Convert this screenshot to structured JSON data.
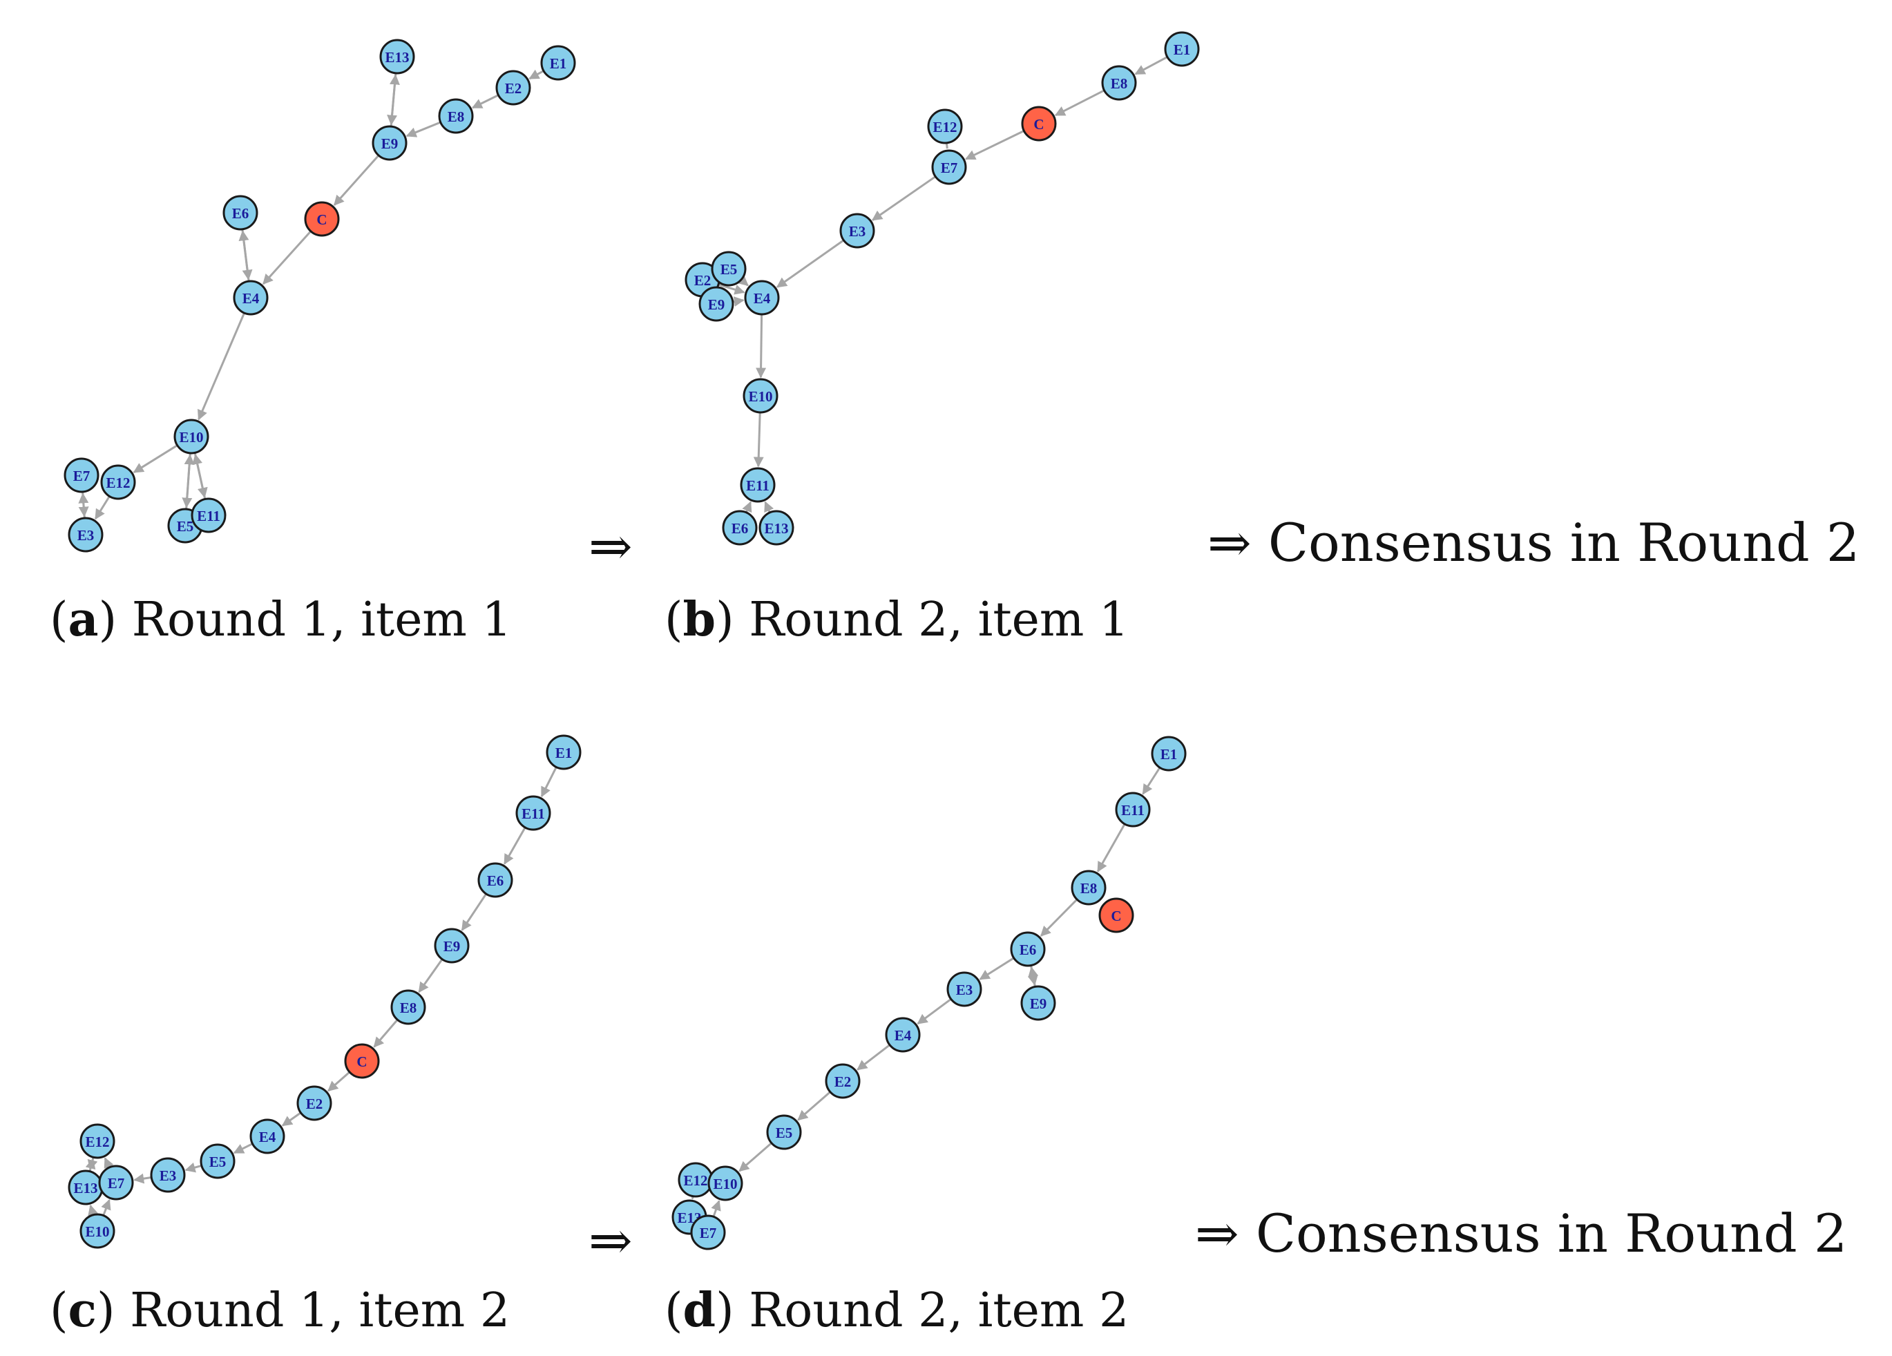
{
  "colors": {
    "expert": "#87ceeb",
    "central": "#ff6347",
    "edge": "#a6a6a6",
    "label": "#1b1b9a"
  },
  "arrow_symbol": "⇒",
  "consensus_text": "⇒ Consensus in Round 2",
  "panels": [
    {
      "id": "a",
      "caption": {
        "letter": "a",
        "text": "Round 1, item 1"
      },
      "nodes": [
        {
          "id": "E13"
        },
        {
          "id": "E1"
        },
        {
          "id": "E2"
        },
        {
          "id": "E8"
        },
        {
          "id": "E9"
        },
        {
          "id": "E6"
        },
        {
          "id": "C"
        },
        {
          "id": "E4"
        },
        {
          "id": "E10"
        },
        {
          "id": "E7"
        },
        {
          "id": "E12"
        },
        {
          "id": "E3"
        },
        {
          "id": "E5"
        },
        {
          "id": "E11"
        }
      ],
      "edges": [
        [
          "E1",
          "E2",
          1
        ],
        [
          "E2",
          "E8",
          1
        ],
        [
          "E8",
          "E9",
          1
        ],
        [
          "E13",
          "E9",
          1
        ],
        [
          "E9",
          "E13",
          1
        ],
        [
          "E9",
          "C",
          1
        ],
        [
          "C",
          "E4",
          1
        ],
        [
          "E6",
          "E4",
          1
        ],
        [
          "E4",
          "E6",
          1
        ],
        [
          "E4",
          "E10",
          1
        ],
        [
          "E10",
          "E12",
          1
        ],
        [
          "E12",
          "E3",
          1
        ],
        [
          "E3",
          "E7",
          1
        ],
        [
          "E7",
          "E3",
          1
        ],
        [
          "E10",
          "E5",
          1
        ],
        [
          "E5",
          "E10",
          1
        ],
        [
          "E10",
          "E11",
          1
        ],
        [
          "E11",
          "E10",
          1
        ]
      ]
    },
    {
      "id": "b",
      "caption": {
        "letter": "b",
        "text": "Round 2, item 1"
      },
      "nodes": [
        {
          "id": "E1"
        },
        {
          "id": "E8"
        },
        {
          "id": "C"
        },
        {
          "id": "E12"
        },
        {
          "id": "E7"
        },
        {
          "id": "E3"
        },
        {
          "id": "E2"
        },
        {
          "id": "E5"
        },
        {
          "id": "E9"
        },
        {
          "id": "E4"
        },
        {
          "id": "E10"
        },
        {
          "id": "E11"
        },
        {
          "id": "E6"
        },
        {
          "id": "E13"
        }
      ],
      "edges": [
        [
          "E1",
          "E8",
          1
        ],
        [
          "E8",
          "C",
          1
        ],
        [
          "C",
          "E7",
          1
        ],
        [
          "E12",
          "E7",
          0
        ],
        [
          "E7",
          "E3",
          1
        ],
        [
          "E3",
          "E4",
          1
        ],
        [
          "E2",
          "E4",
          1
        ],
        [
          "E5",
          "E4",
          1
        ],
        [
          "E9",
          "E4",
          1
        ],
        [
          "E4",
          "E10",
          1
        ],
        [
          "E10",
          "E11",
          1
        ],
        [
          "E6",
          "E11",
          1
        ],
        [
          "E13",
          "E11",
          1
        ]
      ]
    },
    {
      "id": "c",
      "caption": {
        "letter": "c",
        "text": "Round 1, item 2"
      },
      "nodes": [
        {
          "id": "E1"
        },
        {
          "id": "E11"
        },
        {
          "id": "E6"
        },
        {
          "id": "E9"
        },
        {
          "id": "E8"
        },
        {
          "id": "C"
        },
        {
          "id": "E2"
        },
        {
          "id": "E4"
        },
        {
          "id": "E5"
        },
        {
          "id": "E3"
        },
        {
          "id": "E12"
        },
        {
          "id": "E13"
        },
        {
          "id": "E7"
        },
        {
          "id": "E10"
        }
      ],
      "edges": [
        [
          "E1",
          "E11",
          1
        ],
        [
          "E11",
          "E6",
          1
        ],
        [
          "E6",
          "E9",
          1
        ],
        [
          "E9",
          "E8",
          1
        ],
        [
          "E8",
          "C",
          1
        ],
        [
          "C",
          "E2",
          1
        ],
        [
          "E2",
          "E4",
          1
        ],
        [
          "E4",
          "E5",
          1
        ],
        [
          "E5",
          "E3",
          1
        ],
        [
          "E3",
          "E7",
          1
        ],
        [
          "E7",
          "E12",
          1
        ],
        [
          "E12",
          "E13",
          1
        ],
        [
          "E13",
          "E12",
          1
        ],
        [
          "E10",
          "E13",
          1
        ],
        [
          "E10",
          "E7",
          1
        ]
      ]
    },
    {
      "id": "d",
      "caption": {
        "letter": "d",
        "text": "Round 2, item 2"
      },
      "nodes": [
        {
          "id": "E1"
        },
        {
          "id": "E11"
        },
        {
          "id": "E8"
        },
        {
          "id": "C"
        },
        {
          "id": "E6"
        },
        {
          "id": "E3"
        },
        {
          "id": "E9"
        },
        {
          "id": "E4"
        },
        {
          "id": "E2"
        },
        {
          "id": "E5"
        },
        {
          "id": "E12"
        },
        {
          "id": "E10"
        },
        {
          "id": "E13"
        },
        {
          "id": "E7"
        }
      ],
      "edges": [
        [
          "E1",
          "E11",
          1
        ],
        [
          "E11",
          "E8",
          1
        ],
        [
          "E8",
          "E6",
          1
        ],
        [
          "E9",
          "E6",
          1
        ],
        [
          "E6",
          "E9",
          1
        ],
        [
          "E6",
          "E3",
          1
        ],
        [
          "E3",
          "E4",
          1
        ],
        [
          "E4",
          "E2",
          1
        ],
        [
          "E2",
          "E5",
          1
        ],
        [
          "E5",
          "E10",
          1
        ],
        [
          "E10",
          "E12",
          1
        ],
        [
          "E12",
          "E13",
          1
        ],
        [
          "E13",
          "E7",
          1
        ],
        [
          "E7",
          "E10",
          1
        ]
      ]
    }
  ]
}
